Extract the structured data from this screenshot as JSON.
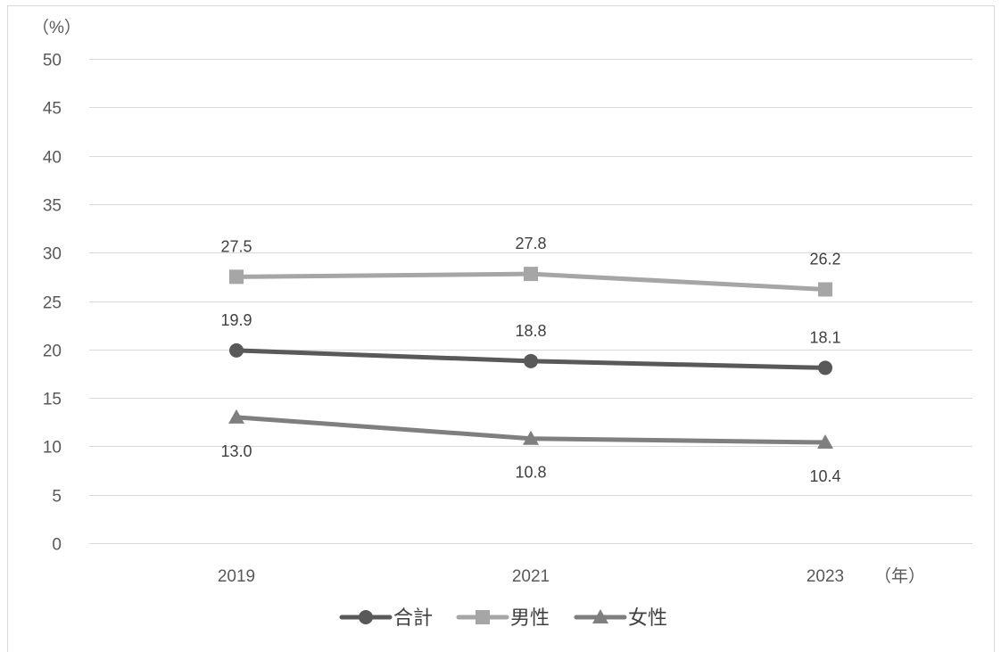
{
  "chart_data": {
    "type": "line",
    "categories": [
      "2019",
      "2021",
      "2023"
    ],
    "xunit": "（年）",
    "yunit": "（%）",
    "ylim": [
      0,
      50
    ],
    "yticks": [
      0,
      5,
      10,
      15,
      20,
      25,
      30,
      35,
      40,
      45,
      50
    ],
    "grid": "horizontal",
    "legend": "bottom",
    "series": [
      {
        "name": "合計",
        "values": [
          19.9,
          18.8,
          18.1
        ],
        "color": "#595959",
        "marker": "circle",
        "label_position": "above"
      },
      {
        "name": "男性",
        "values": [
          27.5,
          27.8,
          26.2
        ],
        "color": "#a6a6a6",
        "marker": "square",
        "label_position": "above"
      },
      {
        "name": "女性",
        "values": [
          13.0,
          10.8,
          10.4
        ],
        "color": "#7f7f7f",
        "marker": "triangle",
        "label_position": "below"
      }
    ]
  }
}
